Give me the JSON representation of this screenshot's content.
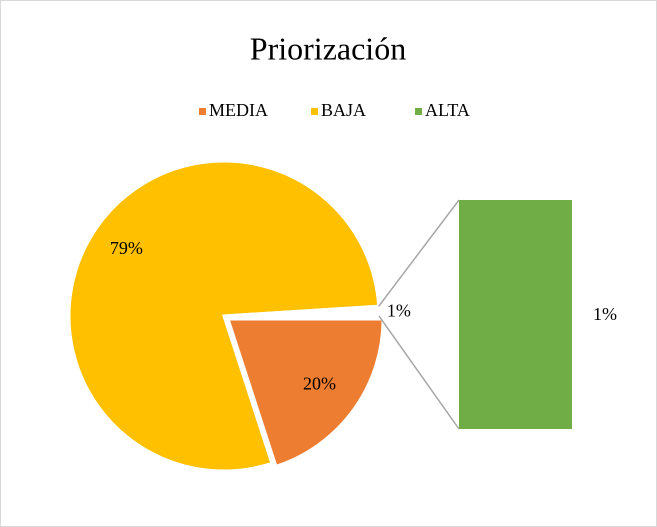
{
  "chart_data": {
    "type": "pie",
    "title": "Priorización",
    "categories": [
      "MEDIA",
      "BAJA",
      "ALTA"
    ],
    "values": [
      20,
      79,
      1
    ],
    "value_labels": [
      "20%",
      "79%",
      "1%"
    ],
    "colors": [
      "#ed7d31",
      "#ffc000",
      "#70ad47"
    ],
    "legend": "top"
  }
}
